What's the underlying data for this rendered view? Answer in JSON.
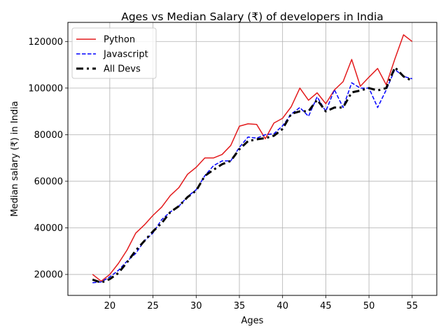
{
  "chart_data": {
    "type": "line",
    "title": "Ages vs Median Salary (₹) of developers in India",
    "xlabel": "Ages",
    "ylabel": "Median salary (₹) in India",
    "xlim": [
      15.15,
      57.85
    ],
    "ylim": [
      11000,
      128200
    ],
    "xticks": [
      20,
      25,
      30,
      35,
      40,
      45,
      50,
      55
    ],
    "yticks": [
      20000,
      40000,
      60000,
      80000,
      100000,
      120000
    ],
    "grid": true,
    "legend": "upper-left",
    "x": [
      18,
      19,
      20,
      21,
      22,
      23,
      24,
      25,
      26,
      27,
      28,
      29,
      30,
      31,
      32,
      33,
      34,
      35,
      36,
      37,
      38,
      39,
      40,
      41,
      42,
      43,
      44,
      45,
      46,
      47,
      48,
      49,
      50,
      51,
      52,
      53,
      54,
      55
    ],
    "series": [
      {
        "name": "Python",
        "color": "#e31a1c",
        "style": "solid",
        "width": 1.5,
        "values": [
          20046,
          17100,
          20000,
          24744,
          30500,
          37732,
          41247,
          45372,
          48876,
          53850,
          57287,
          63016,
          65998,
          70003,
          70000,
          71496,
          75370,
          83640,
          84666,
          84392,
          78254,
          85000,
          87038,
          91991,
          100000,
          94796,
          97962,
          93302,
          99240,
          102736,
          112285,
          100771,
          104708,
          108423,
          101407,
          112542,
          122870,
          120000
        ]
      },
      {
        "name": "Javascript",
        "color": "#0000ff",
        "style": "dashed",
        "width": 1.5,
        "values": [
          16446,
          16791,
          18942,
          21780,
          25704,
          29000,
          34372,
          37810,
          43515,
          46823,
          49293,
          53437,
          56373,
          62375,
          66674,
          68745,
          68746,
          74583,
          79000,
          78508,
          79996,
          80403,
          83820,
          88833,
          91660,
          87892,
          96243,
          90000,
          99313,
          91660,
          102264,
          100000,
          100000,
          91660,
          99240,
          108000,
          105000,
          104000
        ]
      },
      {
        "name": "All Devs",
        "color": "#000000",
        "style": "dashdot",
        "width": 3,
        "values": [
          17784,
          16500,
          18012,
          20628,
          25206,
          30252,
          34368,
          38496,
          42000,
          46752,
          49320,
          53200,
          56000,
          62316,
          64928,
          67317,
          68748,
          73752,
          77232,
          78000,
          78508,
          79536,
          82488,
          88935,
          90000,
          90056,
          95000,
          90000,
          91633,
          91660,
          98150,
          98964,
          100000,
          98988,
          100000,
          108923,
          105000,
          103117
        ]
      }
    ]
  }
}
